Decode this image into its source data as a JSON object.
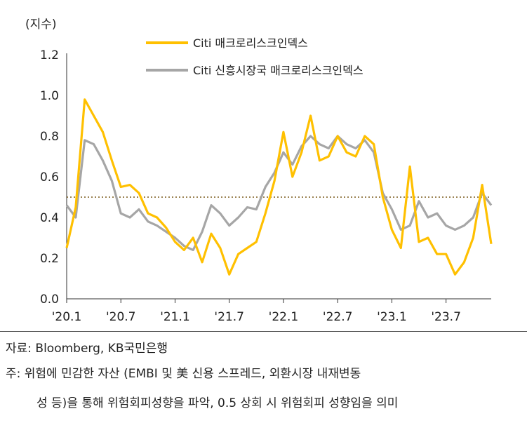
{
  "chart_data": {
    "type": "line",
    "unit_label": "(지수)",
    "y_ticks": [
      "0.0",
      "0.2",
      "0.4",
      "0.6",
      "0.8",
      "1.0",
      "1.2"
    ],
    "ylim": [
      0,
      1.2
    ],
    "x_ticks": [
      "'20.1",
      "'20.7",
      "'21.1",
      "'21.7",
      "'22.1",
      "'22.7",
      "'23.1",
      "'23.7"
    ],
    "x_tick_months": [
      "2020-01",
      "2020-07",
      "2021-01",
      "2021-07",
      "2022-01",
      "2022-07",
      "2023-01",
      "2023-07"
    ],
    "xlim": [
      "2020-01",
      "2023-12"
    ],
    "threshold": 0.5,
    "legend_position": "top",
    "series": [
      {
        "name": "Citi 매크로리스크인덱스",
        "color": "#FFC000",
        "x": [
          "2020-01",
          "2020-02",
          "2020-03",
          "2020-04",
          "2020-05",
          "2020-06",
          "2020-07",
          "2020-08",
          "2020-09",
          "2020-10",
          "2020-11",
          "2020-12",
          "2021-01",
          "2021-02",
          "2021-03",
          "2021-04",
          "2021-05",
          "2021-06",
          "2021-07",
          "2021-08",
          "2021-09",
          "2021-10",
          "2021-11",
          "2021-12",
          "2022-01",
          "2022-02",
          "2022-03",
          "2022-04",
          "2022-05",
          "2022-06",
          "2022-07",
          "2022-08",
          "2022-09",
          "2022-10",
          "2022-11",
          "2022-12",
          "2023-01",
          "2023-02",
          "2023-03",
          "2023-04",
          "2023-05",
          "2023-06",
          "2023-07",
          "2023-08",
          "2023-09",
          "2023-10",
          "2023-11",
          "2023-12"
        ],
        "values": [
          0.25,
          0.45,
          0.98,
          0.9,
          0.82,
          0.68,
          0.55,
          0.56,
          0.52,
          0.42,
          0.4,
          0.35,
          0.28,
          0.24,
          0.3,
          0.18,
          0.32,
          0.25,
          0.12,
          0.22,
          0.25,
          0.28,
          0.42,
          0.58,
          0.82,
          0.6,
          0.72,
          0.9,
          0.68,
          0.7,
          0.8,
          0.72,
          0.7,
          0.8,
          0.76,
          0.5,
          0.34,
          0.25,
          0.65,
          0.28,
          0.3,
          0.22,
          0.22,
          0.12,
          0.18,
          0.3,
          0.56,
          0.27
        ]
      },
      {
        "name": "Citi 신흥시장국 매크로리스크인덱스",
        "color": "#A6A6A6",
        "x": [
          "2020-01",
          "2020-02",
          "2020-03",
          "2020-04",
          "2020-05",
          "2020-06",
          "2020-07",
          "2020-08",
          "2020-09",
          "2020-10",
          "2020-11",
          "2020-12",
          "2021-01",
          "2021-02",
          "2021-03",
          "2021-04",
          "2021-05",
          "2021-06",
          "2021-07",
          "2021-08",
          "2021-09",
          "2021-10",
          "2021-11",
          "2021-12",
          "2022-01",
          "2022-02",
          "2022-03",
          "2022-04",
          "2022-05",
          "2022-06",
          "2022-07",
          "2022-08",
          "2022-09",
          "2022-10",
          "2022-11",
          "2022-12",
          "2023-01",
          "2023-02",
          "2023-03",
          "2023-04",
          "2023-05",
          "2023-06",
          "2023-07",
          "2023-08",
          "2023-09",
          "2023-10",
          "2023-11",
          "2023-12"
        ],
        "values": [
          0.46,
          0.4,
          0.78,
          0.76,
          0.68,
          0.58,
          0.42,
          0.4,
          0.44,
          0.38,
          0.36,
          0.33,
          0.3,
          0.26,
          0.24,
          0.33,
          0.46,
          0.42,
          0.36,
          0.4,
          0.45,
          0.44,
          0.55,
          0.62,
          0.72,
          0.66,
          0.75,
          0.8,
          0.76,
          0.74,
          0.8,
          0.76,
          0.74,
          0.78,
          0.72,
          0.52,
          0.44,
          0.34,
          0.36,
          0.48,
          0.4,
          0.42,
          0.36,
          0.34,
          0.36,
          0.4,
          0.52,
          0.46
        ]
      }
    ]
  },
  "footer": {
    "source": "자료: Bloomberg, KB국민은행",
    "note_line1": "주: 위험에 민감한 자산 (EMBI 및 美 신용 스프레드, 외환시장 내재변동",
    "note_line2": "성 등)을 통해 위험회피성향을 파악, 0.5 상회 시 위험회피 성향임을 의미"
  }
}
